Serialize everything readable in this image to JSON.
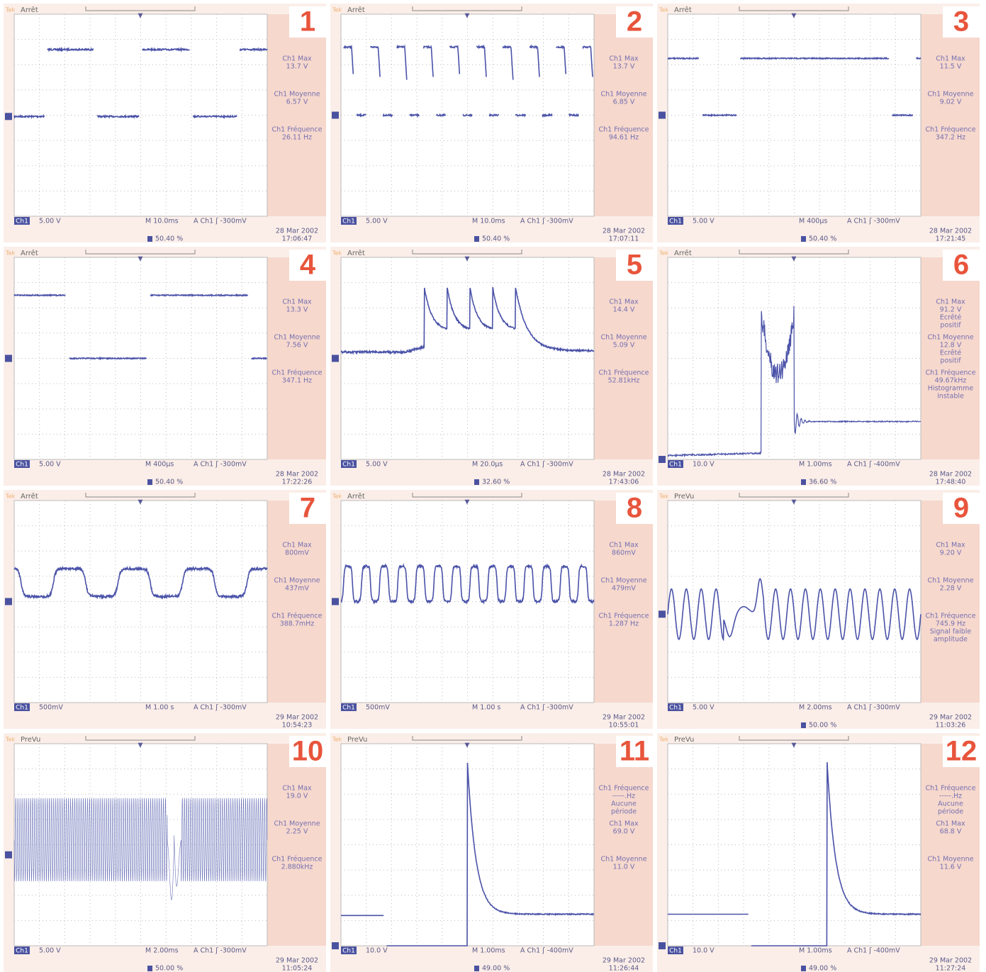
{
  "panels": [
    {
      "number": "1",
      "brand": "Tek",
      "status": "Arrêt",
      "measurements": [
        [
          "Ch1 Max",
          "13.7 V"
        ],
        [
          "Ch1 Moyenne",
          "6.57 V"
        ],
        [
          "Ch1 Fréquence",
          "26.11 Hz"
        ]
      ],
      "channel": "Ch1",
      "scale": "5.00 V",
      "timebase": "M 10.0ms",
      "trigger": "A  Ch1  ʃ -300mV",
      "position": "50.40 %",
      "date": "28 Mar 2002",
      "time": "17:06:47"
    },
    {
      "number": "2",
      "brand": "Tek",
      "status": "Arrêt",
      "measurements": [
        [
          "Ch1 Max",
          "13.7 V"
        ],
        [
          "Ch1 Moyenne",
          "6.85 V"
        ],
        [
          "Ch1 Fréquence",
          "94.61 Hz"
        ]
      ],
      "channel": "Ch1",
      "scale": "5.00 V",
      "timebase": "M 10.0ms",
      "trigger": "A  Ch1  ʃ -300mV",
      "position": "50.40 %",
      "date": "28 Mar 2002",
      "time": "17:07:11"
    },
    {
      "number": "3",
      "brand": "Tek",
      "status": "Arrêt",
      "measurements": [
        [
          "Ch1 Max",
          "11.5 V"
        ],
        [
          "Ch1 Moyenne",
          "9.02 V"
        ],
        [
          "Ch1 Fréquence",
          "347.2 Hz"
        ]
      ],
      "channel": "Ch1",
      "scale": "5.00 V",
      "timebase": "M 400µs",
      "trigger": "A  Ch1  ʃ -300mV",
      "position": "50.40 %",
      "date": "28 Mar 2002",
      "time": "17:21:45"
    },
    {
      "number": "4",
      "brand": "Tek",
      "status": "Arrêt",
      "measurements": [
        [
          "Ch1 Max",
          "13.3 V"
        ],
        [
          "Ch1 Moyenne",
          "7.56 V"
        ],
        [
          "Ch1 Fréquence",
          "347.1 Hz"
        ]
      ],
      "channel": "Ch1",
      "scale": "5.00 V",
      "timebase": "M 400µs",
      "trigger": "A  Ch1  ʃ -300mV",
      "position": "50.40 %",
      "date": "28 Mar 2002",
      "time": "17:22:26"
    },
    {
      "number": "5",
      "brand": "Tek",
      "status": "Arrêt",
      "measurements": [
        [
          "Ch1 Max",
          "14.4 V"
        ],
        [
          "Ch1 Moyenne",
          "5.09 V"
        ],
        [
          "Ch1 Fréquence",
          "52.81kHz"
        ]
      ],
      "channel": "Ch1",
      "scale": "5.00 V",
      "timebase": "M 20.0µs",
      "trigger": "A  Ch1  ʃ -300mV",
      "position": "32.60 %",
      "date": "28 Mar 2002",
      "time": "17:43:06"
    },
    {
      "number": "6",
      "brand": "Tek",
      "status": "Arrêt",
      "measurements": [
        [
          "Ch1 Max",
          "91.2 V",
          "Ecrêté",
          "positif"
        ],
        [
          "Ch1 Moyenne",
          "12.8 V",
          "Ecrêté",
          "positif"
        ],
        [
          "Ch1 Fréquence",
          "49.67kHz",
          "Histogramme",
          "instable"
        ]
      ],
      "channel": "Ch1",
      "scale": "10.0 V",
      "timebase": "M 1.00ms",
      "trigger": "A  Ch1  ʃ -400mV",
      "position": "36.60 %",
      "date": "28 Mar 2002",
      "time": "17:48:40"
    },
    {
      "number": "7",
      "brand": "Tek",
      "status": "Arrêt",
      "measurements": [
        [
          "Ch1 Max",
          "800mV"
        ],
        [
          "Ch1 Moyenne",
          "437mV"
        ],
        [
          "Ch1 Fréquence",
          "388.7mHz"
        ]
      ],
      "channel": "Ch1",
      "scale": "500mV",
      "timebase": "M 1.00 s",
      "trigger": "A  Ch1  ʃ -300mV",
      "date": "29 Mar 2002",
      "time": "10:54:23"
    },
    {
      "number": "8",
      "brand": "Tek",
      "status": "Arrêt",
      "measurements": [
        [
          "Ch1 Max",
          "860mV"
        ],
        [
          "Ch1 Moyenne",
          "479mV"
        ],
        [
          "Ch1 Fréquence",
          "1.287 Hz"
        ]
      ],
      "channel": "Ch1",
      "scale": "500mV",
      "timebase": "M 1.00 s",
      "trigger": "A  Ch1  ʃ -300mV",
      "date": "29 Mar 2002",
      "time": "10:55:01"
    },
    {
      "number": "9",
      "brand": "Tek",
      "status": "PreVu",
      "measurements": [
        [
          "Ch1 Max",
          "9.20 V"
        ],
        [
          "Ch1 Moyenne",
          "2.28 V"
        ],
        [
          "Ch1 Fréquence",
          "745.9 Hz",
          "Signal faible",
          "amplitude"
        ]
      ],
      "channel": "Ch1",
      "scale": "5.00 V",
      "timebase": "M 2.00ms",
      "trigger": "A  Ch1  ʃ -300mV",
      "position": "50.00 %",
      "date": "29 Mar 2002",
      "time": "11:03:26"
    },
    {
      "number": "10",
      "brand": "Tek",
      "status": "PreVu",
      "measurements": [
        [
          "Ch1 Max",
          "19.0 V"
        ],
        [
          "Ch1 Moyenne",
          "2.25 V"
        ],
        [
          "Ch1 Fréquence",
          "2.880kHz"
        ]
      ],
      "channel": "Ch1",
      "scale": "5.00 V",
      "timebase": "M 2.00ms",
      "trigger": "A  Ch1  ʃ -300mV",
      "position": "50.00 %",
      "date": "29 Mar 2002",
      "time": "11:05:24"
    },
    {
      "number": "11",
      "brand": "Tek",
      "status": "PreVu",
      "measurements": [
        [
          "Ch1 Fréquence",
          "-----.Hz",
          "Aucune",
          "période"
        ],
        [
          "Ch1 Max",
          "69.0 V"
        ],
        [
          "Ch1 Moyenne",
          "11.0 V"
        ]
      ],
      "channel": "Ch1",
      "scale": "10.0 V",
      "timebase": "M 1.00ms",
      "trigger": "A  Ch1  ʃ -400mV",
      "position": "49.00 %",
      "date": "29 Mar 2002",
      "time": "11:26:44"
    },
    {
      "number": "12",
      "brand": "Tek",
      "status": "PreVu",
      "measurements": [
        [
          "Ch1 Fréquence",
          "-----.Hz",
          "Aucune",
          "période"
        ],
        [
          "Ch1 Max",
          "68.8 V"
        ],
        [
          "Ch1 Moyenne",
          "11.6 V"
        ]
      ],
      "channel": "Ch1",
      "scale": "10.0 V",
      "timebase": "M 1.00ms",
      "trigger": "A  Ch1  ʃ -400mV",
      "position": "49.00 %",
      "date": "29 Mar 2002",
      "time": "11:27:24"
    }
  ]
}
